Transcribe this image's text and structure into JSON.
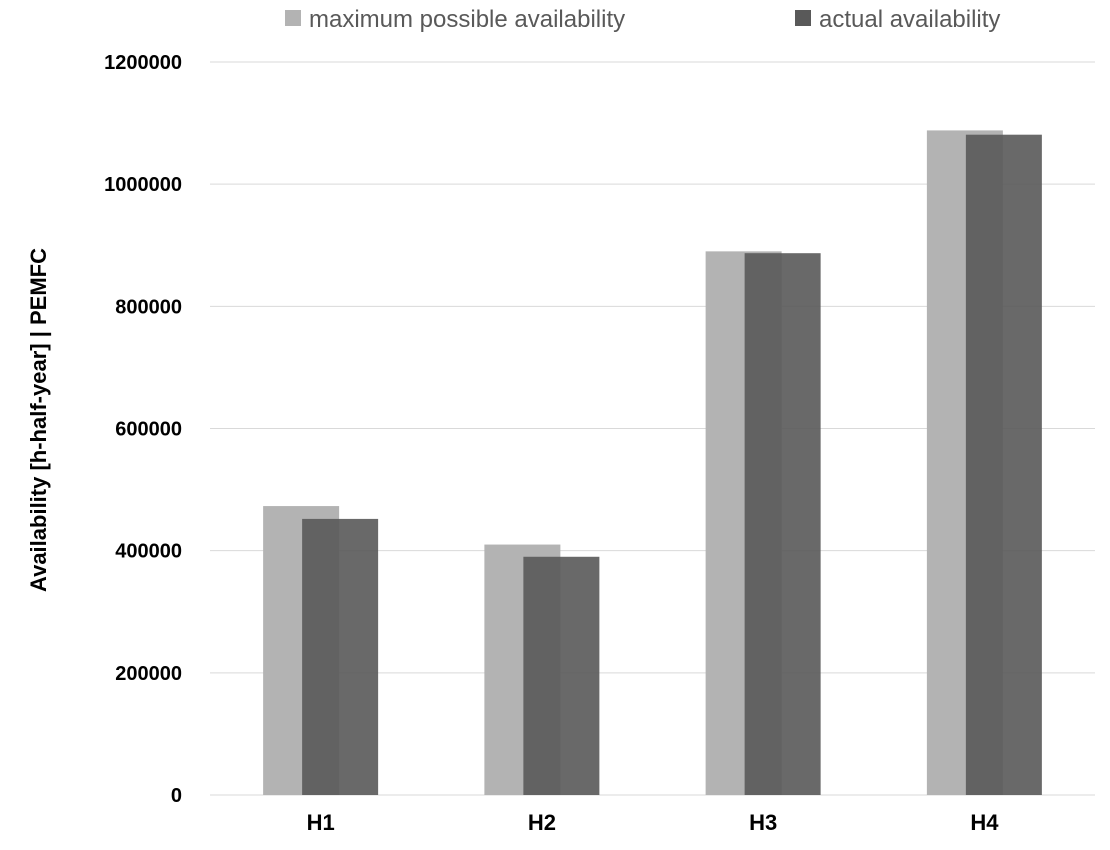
{
  "chart_data": {
    "type": "bar",
    "title": "",
    "xlabel": "",
    "ylabel": "Availability  [h-half-year] | PEMFC",
    "categories": [
      "H1",
      "H2",
      "H3",
      "H4"
    ],
    "series": [
      {
        "name": "maximum possible availability",
        "color": "#b3b3b3",
        "values": [
          473000,
          410000,
          890000,
          1088000
        ]
      },
      {
        "name": "actual availability",
        "color": "#595959",
        "values": [
          452000,
          390000,
          887000,
          1081000
        ]
      }
    ],
    "ylim": [
      0,
      1200000
    ],
    "yticks": [
      0,
      200000,
      400000,
      600000,
      800000,
      1000000,
      1200000
    ],
    "ytick_labels": [
      "0",
      "200000",
      "400000",
      "600000",
      "800000",
      "1000000",
      "1200000"
    ],
    "grid": true,
    "legend_position": "top"
  }
}
